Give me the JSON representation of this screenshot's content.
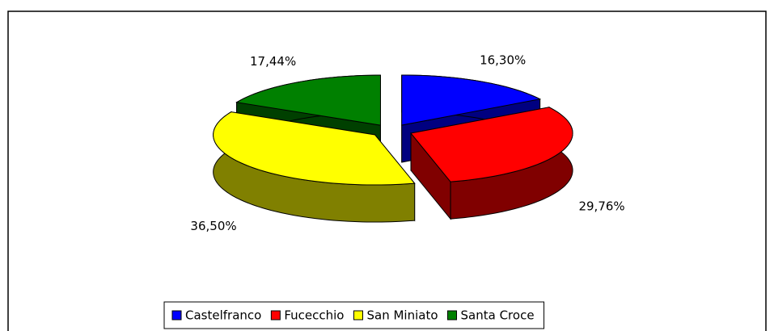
{
  "chart_data": {
    "type": "pie",
    "categories": [
      "Castelfranco",
      "Fucecchio",
      "San Miniato",
      "Santa Croce"
    ],
    "values": [
      16.3,
      29.76,
      36.5,
      17.44
    ],
    "value_labels": [
      "16,30%",
      "29,76%",
      "36,50%",
      "17,44%"
    ],
    "colors": [
      "#0000ff",
      "#ff0000",
      "#ffff00",
      "#008000"
    ],
    "legend": "bottom"
  }
}
